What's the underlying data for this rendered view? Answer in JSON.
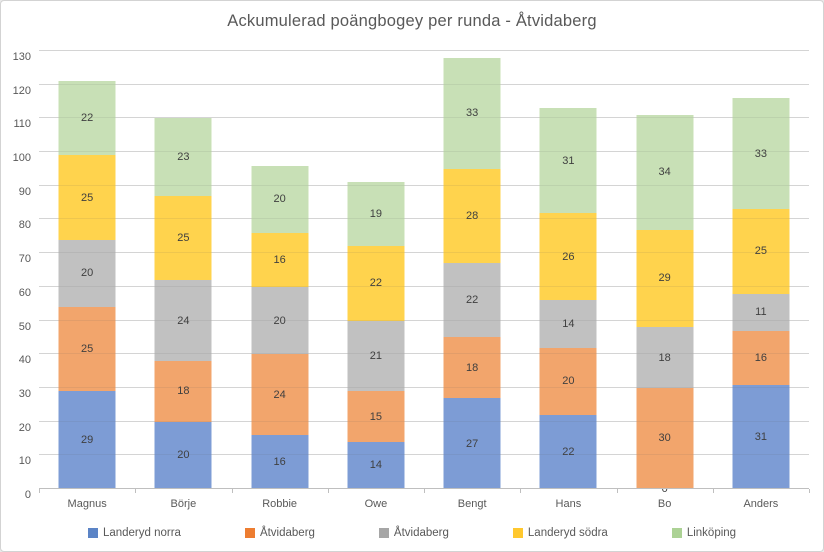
{
  "chart_data": {
    "type": "bar",
    "stacked": true,
    "title": "Ackumulerad poängbogey per runda - Åtvidaberg",
    "categories": [
      "Magnus",
      "Börje",
      "Robbie",
      "Owe",
      "Bengt",
      "Hans",
      "Bo",
      "Anders"
    ],
    "series": [
      {
        "name": "Landeryd norra",
        "bar_color": "#7d9cd5",
        "legend_color": "#5b84c6",
        "values": [
          29,
          20,
          16,
          14,
          27,
          22,
          0,
          31
        ]
      },
      {
        "name": "Åtvidaberg",
        "bar_color": "#f2a56c",
        "legend_color": "#ed7d31",
        "values": [
          25,
          18,
          24,
          15,
          18,
          20,
          30,
          16
        ]
      },
      {
        "name": "Åtvidaberg",
        "bar_color": "#c1c1c1",
        "legend_color": "#a6a6a6",
        "values": [
          20,
          24,
          20,
          21,
          22,
          14,
          18,
          11
        ]
      },
      {
        "name": "Landeryd södra",
        "bar_color": "#ffd34d",
        "legend_color": "#ffc82e",
        "values": [
          25,
          25,
          16,
          22,
          28,
          26,
          29,
          25
        ]
      },
      {
        "name": "Linköping",
        "bar_color": "#c8e0b6",
        "legend_color": "#acd295",
        "values": [
          22,
          23,
          20,
          19,
          33,
          31,
          34,
          33
        ]
      }
    ],
    "totals": [
      121,
      110,
      96,
      91,
      128,
      113,
      111,
      116
    ],
    "ylim": [
      0,
      130
    ],
    "yticks": [
      0,
      10,
      20,
      30,
      40,
      50,
      60,
      70,
      80,
      90,
      100,
      110,
      120,
      130
    ],
    "grid": true,
    "legend_position": "bottom",
    "colors": {
      "title_text": "#595959",
      "axis_text": "#595959",
      "data_label_text": "#3f3f3f",
      "gridline": "#e2e2e2",
      "axis_line": "#bfbfbf",
      "chart_border": "#d3d3d3",
      "background": "#ffffff"
    }
  }
}
